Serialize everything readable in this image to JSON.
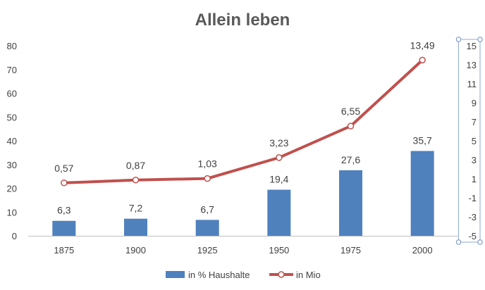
{
  "chart_data": {
    "type": "bar+line",
    "title": "Allein leben",
    "categories": [
      "1875",
      "1900",
      "1925",
      "1950",
      "1975",
      "2000"
    ],
    "series": [
      {
        "name": "in % Haushalte",
        "type": "bar",
        "axis": "left",
        "values": [
          6.3,
          7.2,
          6.7,
          19.4,
          27.6,
          35.7
        ],
        "labels": [
          "6,3",
          "7,2",
          "6,7",
          "19,4",
          "27,6",
          "35,7"
        ],
        "color": "#4f81bd"
      },
      {
        "name": "in Mio",
        "type": "line",
        "axis": "right",
        "values": [
          0.57,
          0.87,
          1.03,
          3.23,
          6.55,
          13.49
        ],
        "labels": [
          "0,57",
          "0,87",
          "1,03",
          "3,23",
          "6,55",
          "13,49"
        ],
        "color": "#c0504d",
        "marker_fill": "#ffffff"
      }
    ],
    "y_left": {
      "range": [
        0,
        80
      ],
      "ticks": [
        "0",
        "10",
        "20",
        "30",
        "40",
        "50",
        "60",
        "70",
        "80"
      ]
    },
    "y_right": {
      "range": [
        -5,
        15
      ],
      "ticks": [
        "-5",
        "-3",
        "-1",
        "1",
        "3",
        "5",
        "7",
        "9",
        "11",
        "13",
        "15"
      ]
    },
    "grid": false,
    "legend": "bottom",
    "legend_entries": [
      "in % Haushalte",
      "in Mio"
    ],
    "text_color": "#404040",
    "title_color": "#595959",
    "axis_color": "#bfbfbf"
  }
}
